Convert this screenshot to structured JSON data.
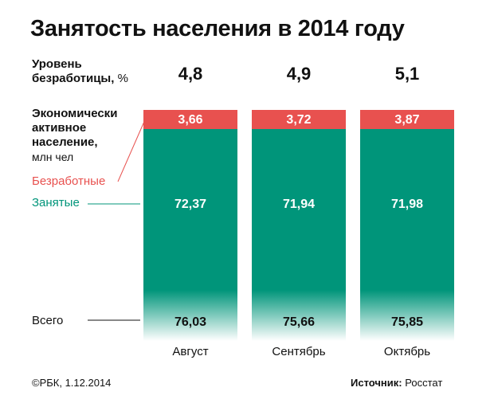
{
  "title": "Занятость населения в 2014 году",
  "unemployment_rate_label": {
    "line1": "Уровень",
    "line2": "безработицы,",
    "unit": "%"
  },
  "active_population_label": {
    "line1": "Экономически",
    "line2": "активное",
    "line3": "население,",
    "unit": "млн чел"
  },
  "legend": {
    "unemployed": "Безработные",
    "employed": "Занятые",
    "total": "Всего"
  },
  "footer": {
    "copyright": "©РБК, 1.12.2014",
    "source_label": "Источник:",
    "source": "Росстат"
  },
  "colors": {
    "unemployed": "#e8514f",
    "employed": "#00957a",
    "text": "#111111"
  },
  "chart_data": {
    "type": "bar",
    "stacked": true,
    "categories": [
      "Август",
      "Сентябрь",
      "Октябрь"
    ],
    "series": [
      {
        "name": "Занятые",
        "values": [
          72.37,
          71.94,
          71.98
        ]
      },
      {
        "name": "Безработные",
        "values": [
          3.66,
          3.72,
          3.87
        ]
      }
    ],
    "totals": [
      76.03,
      75.66,
      75.85
    ],
    "unemployment_rate": [
      4.8,
      4.9,
      5.1
    ],
    "value_labels": {
      "employed": [
        "72,37",
        "71,94",
        "71,98"
      ],
      "unemployed": [
        "3,66",
        "3,72",
        "3,87"
      ],
      "totals": [
        "76,03",
        "75,66",
        "75,85"
      ],
      "rates": [
        "4,8",
        "4,9",
        "5,1"
      ]
    },
    "grid": false
  }
}
